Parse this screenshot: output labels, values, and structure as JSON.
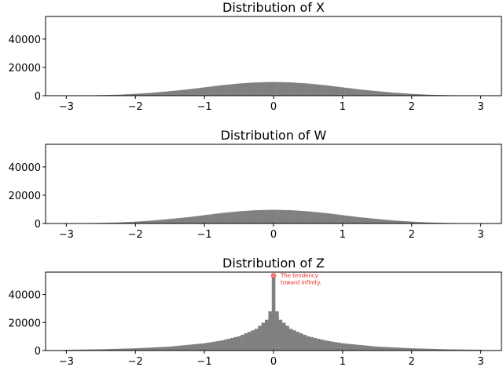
{
  "chart_data": [
    {
      "type": "bar",
      "title": "Distribution of X",
      "xlabel": "",
      "ylabel": "",
      "xlim": [
        -3.3,
        3.3
      ],
      "ylim": [
        0,
        56000
      ],
      "xticks": [
        -3,
        -2,
        -1,
        0,
        1,
        2,
        3
      ],
      "xtick_labels": [
        "−3",
        "−2",
        "−1",
        "0",
        "1",
        "2",
        "3"
      ],
      "yticks": [
        0,
        20000,
        40000
      ],
      "ytick_labels": [
        "0",
        "20000",
        "40000"
      ],
      "grid": false,
      "distribution": "normal",
      "bin_width": 0.05,
      "x": [
        -3.0,
        -2.75,
        -2.5,
        -2.25,
        -2.0,
        -1.75,
        -1.5,
        -1.25,
        -1.0,
        -0.75,
        -0.5,
        -0.25,
        0.0,
        0.25,
        0.5,
        0.75,
        1.0,
        1.25,
        1.5,
        1.75,
        2.0,
        2.25,
        2.5,
        2.75,
        3.0
      ],
      "values": [
        100,
        200,
        400,
        700,
        1300,
        2100,
        3200,
        4400,
        5900,
        7400,
        8600,
        9400,
        9700,
        9400,
        8600,
        7400,
        5900,
        4400,
        3200,
        2100,
        1300,
        700,
        400,
        200,
        100
      ],
      "annotations": []
    },
    {
      "type": "bar",
      "title": "Distribution of W",
      "xlabel": "",
      "ylabel": "",
      "xlim": [
        -3.3,
        3.3
      ],
      "ylim": [
        0,
        56000
      ],
      "xticks": [
        -3,
        -2,
        -1,
        0,
        1,
        2,
        3
      ],
      "xtick_labels": [
        "−3",
        "−2",
        "−1",
        "0",
        "1",
        "2",
        "3"
      ],
      "yticks": [
        0,
        20000,
        40000
      ],
      "ytick_labels": [
        "0",
        "20000",
        "40000"
      ],
      "grid": false,
      "distribution": "normal",
      "bin_width": 0.05,
      "x": [
        -3.0,
        -2.75,
        -2.5,
        -2.25,
        -2.0,
        -1.75,
        -1.5,
        -1.25,
        -1.0,
        -0.75,
        -0.5,
        -0.25,
        0.0,
        0.25,
        0.5,
        0.75,
        1.0,
        1.25,
        1.5,
        1.75,
        2.0,
        2.25,
        2.5,
        2.75,
        3.0
      ],
      "values": [
        100,
        200,
        400,
        700,
        1300,
        2100,
        3200,
        4400,
        5900,
        7400,
        8600,
        9400,
        9700,
        9400,
        8600,
        7400,
        5900,
        4400,
        3200,
        2100,
        1300,
        700,
        400,
        200,
        100
      ],
      "annotations": []
    },
    {
      "type": "bar",
      "title": "Distribution of Z",
      "xlabel": "",
      "ylabel": "",
      "xlim": [
        -3.3,
        3.3
      ],
      "ylim": [
        0,
        56000
      ],
      "xticks": [
        -3,
        -2,
        -1,
        0,
        1,
        2,
        3
      ],
      "xtick_labels": [
        "−3",
        "−2",
        "−1",
        "0",
        "1",
        "2",
        "3"
      ],
      "yticks": [
        0,
        20000,
        40000
      ],
      "ytick_labels": [
        "0",
        "20000",
        "40000"
      ],
      "grid": false,
      "distribution": "peaked",
      "bin_width": 0.05,
      "x": [
        -3.0,
        -2.5,
        -2.0,
        -1.5,
        -1.0,
        -0.75,
        -0.5,
        -0.25,
        -0.1,
        -0.05,
        0.0,
        0.05,
        0.1,
        0.25,
        0.5,
        0.75,
        1.0,
        1.5,
        2.0,
        2.5,
        3.0
      ],
      "values": [
        500,
        900,
        1600,
        2800,
        5200,
        7200,
        10200,
        15500,
        22000,
        28000,
        52000,
        28000,
        22000,
        15500,
        10200,
        7200,
        5200,
        2800,
        1600,
        900,
        500
      ],
      "annotations": [
        {
          "x": 0.0,
          "y": 53500,
          "text": "The tendency\ntoward infinity.",
          "color": "#e8271a"
        }
      ]
    }
  ]
}
